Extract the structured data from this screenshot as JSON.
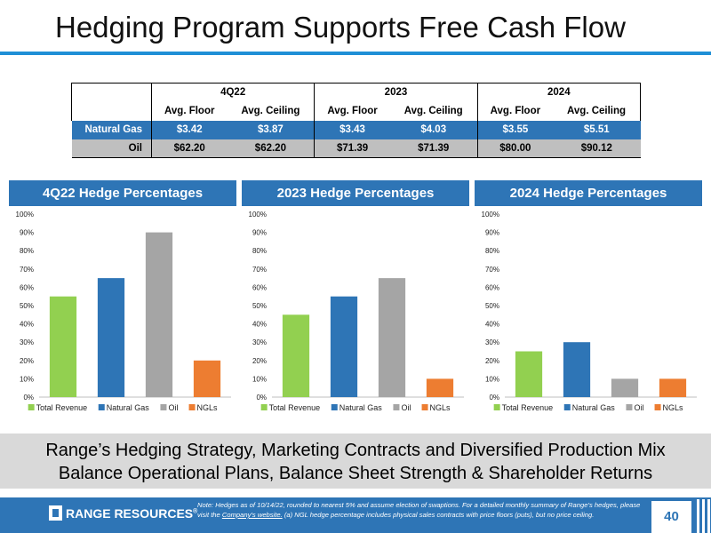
{
  "title": "Hedging Program Supports Free Cash Flow",
  "table": {
    "periods": [
      "4Q22",
      "2023",
      "2024"
    ],
    "col_floor": "Avg. Floor",
    "col_ceiling": "Avg. Ceiling",
    "rows": [
      {
        "label": "Natural Gas",
        "values": [
          "$3.42",
          "$3.87",
          "$3.43",
          "$4.03",
          "$3.55",
          "$5.51"
        ]
      },
      {
        "label": "Oil",
        "values": [
          "$62.20",
          "$62.20",
          "$71.39",
          "$71.39",
          "$80.00",
          "$90.12"
        ]
      }
    ]
  },
  "chart_data": [
    {
      "type": "bar",
      "title": "4Q22 Hedge Percentages",
      "categories": [
        "Total Revenue",
        "Natural Gas",
        "Oil",
        "NGLs"
      ],
      "values": [
        55,
        65,
        90,
        20
      ],
      "colors": [
        "#92d050",
        "#2e75b6",
        "#a5a5a5",
        "#ed7d31"
      ],
      "ylim": [
        0,
        100
      ],
      "yticks": [
        "0%",
        "10%",
        "20%",
        "30%",
        "40%",
        "50%",
        "60%",
        "70%",
        "80%",
        "90%",
        "100%"
      ],
      "legend": "bottom"
    },
    {
      "type": "bar",
      "title": "2023 Hedge Percentages",
      "categories": [
        "Total Revenue",
        "Natural Gas",
        "Oil",
        "NGLs"
      ],
      "values": [
        45,
        55,
        65,
        10
      ],
      "colors": [
        "#92d050",
        "#2e75b6",
        "#a5a5a5",
        "#ed7d31"
      ],
      "ylim": [
        0,
        100
      ],
      "yticks": [
        "0%",
        "10%",
        "20%",
        "30%",
        "40%",
        "50%",
        "60%",
        "70%",
        "80%",
        "90%",
        "100%"
      ],
      "legend": "bottom"
    },
    {
      "type": "bar",
      "title": "2024 Hedge Percentages",
      "categories": [
        "Total Revenue",
        "Natural Gas",
        "Oil",
        "NGLs"
      ],
      "values": [
        25,
        30,
        10,
        10
      ],
      "colors": [
        "#92d050",
        "#2e75b6",
        "#a5a5a5",
        "#ed7d31"
      ],
      "ylim": [
        0,
        100
      ],
      "yticks": [
        "0%",
        "10%",
        "20%",
        "30%",
        "40%",
        "50%",
        "60%",
        "70%",
        "80%",
        "90%",
        "100%"
      ],
      "legend": "bottom"
    }
  ],
  "band": {
    "line1": "Range’s Hedging Strategy, Marketing Contracts and Diversified Production Mix",
    "line2": "Balance Operational Plans, Balance Sheet Strength & Shareholder Returns"
  },
  "footer": {
    "logo_text": "RANGE RESOURCES",
    "logo_mark": "®",
    "note_before": "Note: Hedges as of 10/14/22, rounded to nearest 5% and assume election of swaptions. For a detailed monthly summary of Range’s hedges, please visit the",
    "note_link": "Company’s website.",
    "note_after": "(a) NGL hedge percentage includes physical sales contracts with price floors (puts), but no price ceiling.",
    "page_number": "40"
  },
  "colors": {
    "brand_blue": "#2e75b6",
    "title_rule": "#1f8fd6",
    "band_gray": "#d9d9d9",
    "oil_row_gray": "#bfbfbf"
  }
}
